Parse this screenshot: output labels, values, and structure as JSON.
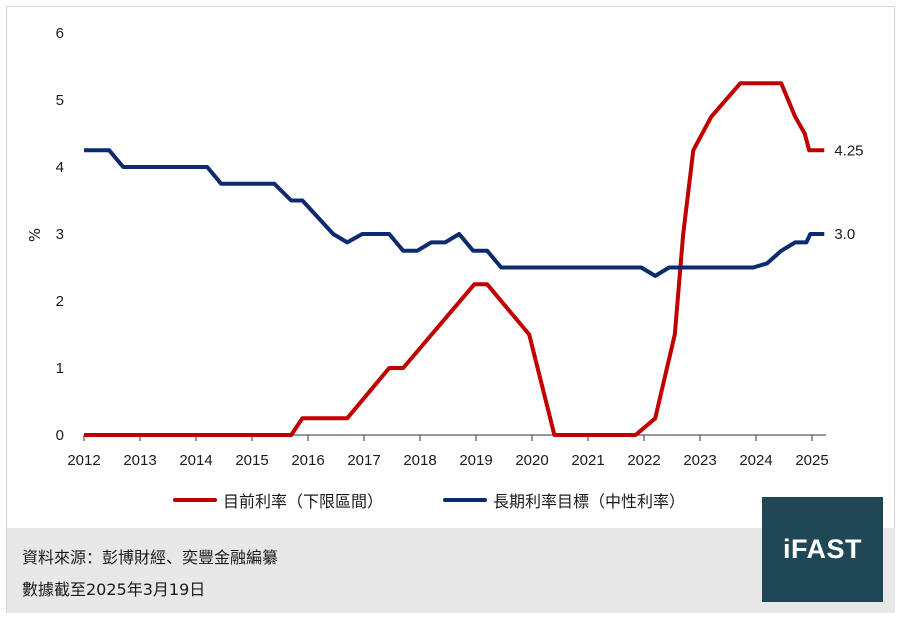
{
  "chart_data": {
    "type": "line",
    "ylabel": "%",
    "xlabel": "",
    "ylim": [
      0,
      6
    ],
    "xlim": [
      2012,
      2025.25
    ],
    "yticks": [
      "0",
      "1",
      "2",
      "3",
      "4",
      "5",
      "6"
    ],
    "xticks": [
      "2012",
      "2013",
      "2014",
      "2015",
      "2016",
      "2017",
      "2018",
      "2019",
      "2020",
      "2021",
      "2022",
      "2023",
      "2024",
      "2025"
    ],
    "grid": false,
    "legend_position": "bottom",
    "series": [
      {
        "name": "目前利率（下限區間）",
        "color": "#c00000",
        "end_label": "4.25",
        "points": [
          [
            2012.0,
            0
          ],
          [
            2015.7,
            0
          ],
          [
            2015.9,
            0.25
          ],
          [
            2016.7,
            0.25
          ],
          [
            2017.45,
            1.0
          ],
          [
            2017.7,
            1.0
          ],
          [
            2018.97,
            2.25
          ],
          [
            2019.2,
            2.25
          ],
          [
            2019.95,
            1.5
          ],
          [
            2020.4,
            0
          ],
          [
            2021.85,
            0
          ],
          [
            2022.2,
            0.25
          ],
          [
            2022.55,
            1.5
          ],
          [
            2022.7,
            3.0
          ],
          [
            2022.88,
            4.25
          ],
          [
            2023.2,
            4.75
          ],
          [
            2023.72,
            5.25
          ],
          [
            2024.45,
            5.25
          ],
          [
            2024.7,
            4.75
          ],
          [
            2024.87,
            4.5
          ],
          [
            2024.95,
            4.25
          ],
          [
            2025.22,
            4.25
          ]
        ]
      },
      {
        "name": "長期利率目標（中性利率）",
        "color": "#0b2a6f",
        "end_label": "3.0",
        "points": [
          [
            2012.0,
            4.25
          ],
          [
            2012.45,
            4.25
          ],
          [
            2012.7,
            4.0
          ],
          [
            2014.2,
            4.0
          ],
          [
            2014.45,
            3.75
          ],
          [
            2015.4,
            3.75
          ],
          [
            2015.7,
            3.5
          ],
          [
            2015.9,
            3.5
          ],
          [
            2016.45,
            3.0
          ],
          [
            2016.7,
            2.875
          ],
          [
            2016.97,
            3.0
          ],
          [
            2017.45,
            3.0
          ],
          [
            2017.7,
            2.75
          ],
          [
            2017.95,
            2.75
          ],
          [
            2018.2,
            2.875
          ],
          [
            2018.45,
            2.875
          ],
          [
            2018.7,
            3.0
          ],
          [
            2018.95,
            2.75
          ],
          [
            2019.2,
            2.75
          ],
          [
            2019.45,
            2.5
          ],
          [
            2021.95,
            2.5
          ],
          [
            2022.2,
            2.375
          ],
          [
            2022.45,
            2.5
          ],
          [
            2023.95,
            2.5
          ],
          [
            2024.2,
            2.5625
          ],
          [
            2024.45,
            2.75
          ],
          [
            2024.7,
            2.875
          ],
          [
            2024.9,
            2.875
          ],
          [
            2024.97,
            3.0
          ],
          [
            2025.22,
            3.0
          ]
        ]
      }
    ]
  },
  "source": {
    "line1": "資料來源：彭博財經、奕豐金融編纂",
    "line2": "數據截至2025年3月19日"
  },
  "logo_text": "iFAST"
}
